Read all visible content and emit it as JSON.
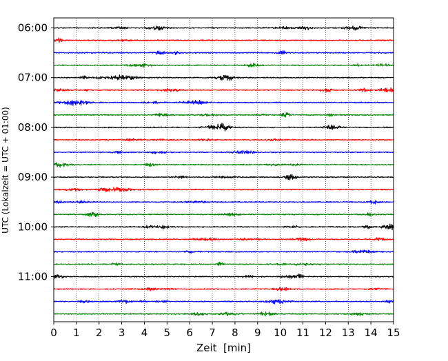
{
  "chart_data": {
    "type": "line",
    "chart_kind": "helicorder",
    "title": "",
    "xlabel": "Zeit  [min]",
    "ylabel": "UTC (Lokalzeit = UTC + 01:00)",
    "xlim": [
      0,
      15
    ],
    "x_ticks": [
      0,
      1,
      2,
      3,
      4,
      5,
      6,
      7,
      8,
      9,
      10,
      11,
      12,
      13,
      14,
      15
    ],
    "x_tick_labels": [
      "0",
      "1",
      "2",
      "3",
      "4",
      "5",
      "6",
      "7",
      "8",
      "9",
      "10",
      "11",
      "12",
      "13",
      "14",
      "15"
    ],
    "grid": {
      "vertical": true,
      "horizontal": false,
      "style": "dotted"
    },
    "trace_colors": [
      "#000000",
      "#ff0000",
      "#0000ff",
      "#008000"
    ],
    "trace_start_times": [
      "06:00",
      "06:15",
      "06:30",
      "06:45",
      "07:00",
      "07:15",
      "07:30",
      "07:45",
      "08:00",
      "08:15",
      "08:30",
      "08:45",
      "09:00",
      "09:15",
      "09:30",
      "09:45",
      "10:00",
      "10:15",
      "10:30",
      "10:45",
      "11:00",
      "11:15",
      "11:30",
      "11:45"
    ],
    "y_tick_labels": [
      "06:00",
      "07:00",
      "08:00",
      "09:00",
      "10:00",
      "11:00"
    ],
    "y_tick_trace_index": [
      0,
      4,
      8,
      12,
      16,
      20
    ]
  }
}
